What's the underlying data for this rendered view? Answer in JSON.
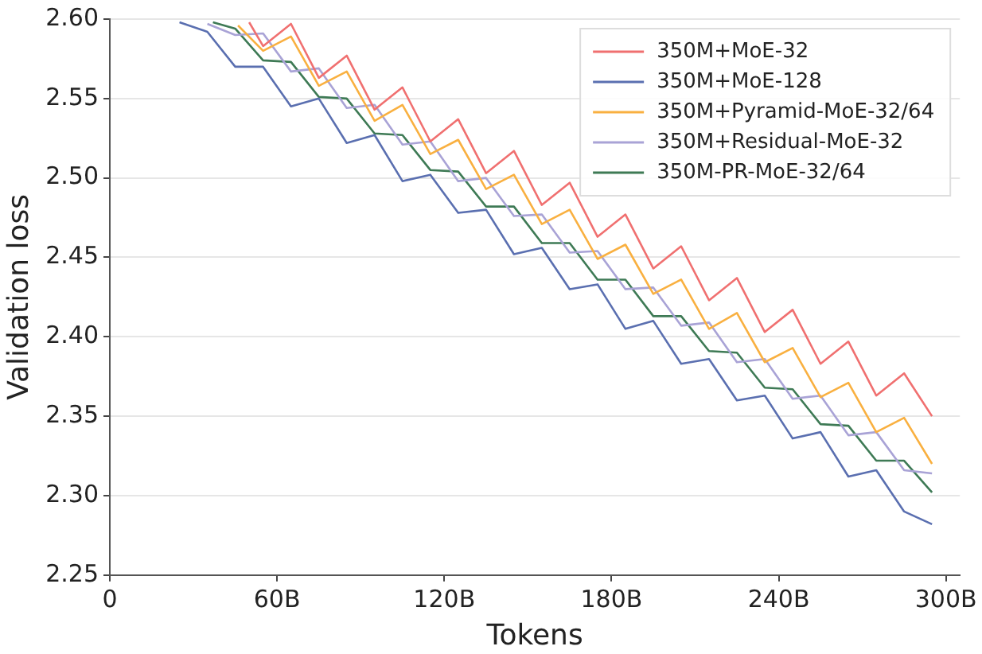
{
  "chart_data": {
    "type": "line",
    "xlabel": "Tokens",
    "ylabel": "Validation loss",
    "xlim": [
      0,
      305
    ],
    "ylim": [
      2.25,
      2.6
    ],
    "xticks": [
      0,
      {
        "value": 60,
        "label": "60B"
      },
      {
        "value": 120,
        "label": "120B"
      },
      {
        "value": 180,
        "label": "180B"
      },
      {
        "value": 240,
        "label": "240B"
      },
      {
        "value": 300,
        "label": "300B"
      }
    ],
    "yticks": [
      2.25,
      {
        "value": 2.3,
        "label": "2.30"
      },
      2.35,
      {
        "value": 2.4,
        "label": "2.40"
      },
      2.45,
      {
        "value": 2.5,
        "label": "2.50"
      },
      2.55,
      {
        "value": 2.6,
        "label": "2.60"
      }
    ],
    "grid": "y",
    "legend": "top right",
    "marker": "none",
    "line_style": "solid",
    "series": [
      {
        "name": "350M+MoE-32",
        "color": "#f07070",
        "x": [
          50,
          55,
          65,
          75,
          85,
          95,
          105,
          115,
          125,
          135,
          145,
          155,
          165,
          175,
          185,
          195,
          205,
          215,
          225,
          235,
          245,
          255,
          265,
          275,
          285,
          295
        ],
        "values": [
          2.598,
          2.583,
          2.597,
          2.563,
          2.577,
          2.543,
          2.557,
          2.523,
          2.537,
          2.503,
          2.517,
          2.483,
          2.497,
          2.463,
          2.477,
          2.443,
          2.457,
          2.423,
          2.437,
          2.403,
          2.417,
          2.383,
          2.397,
          2.363,
          2.377,
          2.35
        ]
      },
      {
        "name": "350M+MoE-128",
        "color": "#5a6fb0",
        "x": [
          25,
          35,
          45,
          55,
          65,
          75,
          85,
          95,
          105,
          115,
          125,
          135,
          145,
          155,
          165,
          175,
          185,
          195,
          205,
          215,
          225,
          235,
          245,
          255,
          265,
          275,
          285,
          295
        ],
        "values": [
          2.598,
          2.592,
          2.57,
          2.57,
          2.545,
          2.55,
          2.522,
          2.527,
          2.498,
          2.502,
          2.478,
          2.48,
          2.452,
          2.456,
          2.43,
          2.433,
          2.405,
          2.41,
          2.383,
          2.386,
          2.36,
          2.363,
          2.336,
          2.34,
          2.312,
          2.316,
          2.29,
          2.282
        ]
      },
      {
        "name": "350M+Pyramid-MoE-32/64",
        "color": "#f9b040",
        "x": [
          46,
          55,
          65,
          75,
          85,
          95,
          105,
          115,
          125,
          135,
          145,
          155,
          165,
          175,
          185,
          195,
          205,
          215,
          225,
          235,
          245,
          255,
          265,
          275,
          285,
          295
        ],
        "values": [
          2.596,
          2.58,
          2.589,
          2.558,
          2.567,
          2.536,
          2.546,
          2.515,
          2.524,
          2.493,
          2.502,
          2.471,
          2.48,
          2.449,
          2.458,
          2.427,
          2.436,
          2.405,
          2.415,
          2.384,
          2.393,
          2.362,
          2.371,
          2.34,
          2.349,
          2.32
        ]
      },
      {
        "name": "350M+Residual-MoE-32",
        "color": "#a9a3d6",
        "x": [
          35,
          45,
          55,
          65,
          75,
          85,
          95,
          105,
          115,
          125,
          135,
          145,
          155,
          165,
          175,
          185,
          195,
          205,
          215,
          225,
          235,
          245,
          255,
          265,
          275,
          285,
          295
        ],
        "values": [
          2.597,
          2.59,
          2.591,
          2.567,
          2.569,
          2.544,
          2.546,
          2.521,
          2.523,
          2.498,
          2.5,
          2.476,
          2.477,
          2.453,
          2.454,
          2.43,
          2.431,
          2.407,
          2.409,
          2.384,
          2.386,
          2.361,
          2.363,
          2.338,
          2.34,
          2.316,
          2.314
        ]
      },
      {
        "name": "350M-PR-MoE-32/64",
        "color": "#3e7a55",
        "x": [
          37,
          45,
          55,
          65,
          75,
          85,
          95,
          105,
          115,
          125,
          135,
          145,
          155,
          165,
          175,
          185,
          195,
          205,
          215,
          225,
          235,
          245,
          255,
          265,
          275,
          285,
          295
        ],
        "values": [
          2.598,
          2.594,
          2.574,
          2.573,
          2.551,
          2.55,
          2.528,
          2.527,
          2.505,
          2.504,
          2.482,
          2.482,
          2.459,
          2.459,
          2.436,
          2.436,
          2.413,
          2.413,
          2.391,
          2.39,
          2.368,
          2.367,
          2.345,
          2.344,
          2.322,
          2.322,
          2.302
        ]
      }
    ]
  }
}
